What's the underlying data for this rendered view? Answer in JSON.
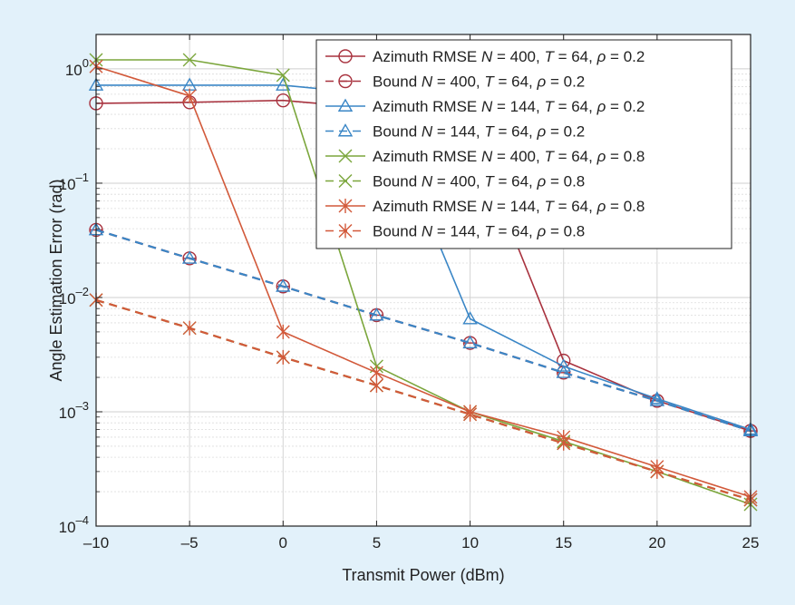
{
  "chart_data": {
    "type": "line",
    "title": "",
    "xlabel": "Transmit Power (dBm)",
    "ylabel": "Angle Estimation Error (rad)",
    "x": [
      -10,
      -5,
      0,
      5,
      10,
      15,
      20,
      25
    ],
    "xlim": [
      -10,
      25
    ],
    "ylim": [
      0.0001,
      2
    ],
    "yscale": "log",
    "grid": true,
    "legend_position": "top-right",
    "x_ticks": [
      {
        "value": -10,
        "label": "–10"
      },
      {
        "value": -5,
        "label": "–5"
      },
      {
        "value": 0,
        "label": "0"
      },
      {
        "value": 5,
        "label": "5"
      },
      {
        "value": 10,
        "label": "10"
      },
      {
        "value": 15,
        "label": "15"
      },
      {
        "value": 20,
        "label": "20"
      },
      {
        "value": 25,
        "label": "25"
      }
    ],
    "y_ticks": [
      {
        "value": 1,
        "base": "10",
        "exp": "0"
      },
      {
        "value": 0.1,
        "base": "10",
        "exp": "–1"
      },
      {
        "value": 0.01,
        "base": "10",
        "exp": "–2"
      },
      {
        "value": 0.001,
        "base": "10",
        "exp": "–3"
      },
      {
        "value": 0.0001,
        "base": "10",
        "exp": "–4"
      }
    ],
    "series": [
      {
        "name": "Azimuth RMSE N = 400, T = 64, ρ = 0.2",
        "label_prefix": "Azimuth RMSE",
        "N": "400",
        "rho": "0.2",
        "color": "#a8323e",
        "marker": "circle",
        "dashed": false,
        "values": [
          0.5,
          0.51,
          0.53,
          0.45,
          0.3,
          0.0028,
          0.00125,
          0.00068
        ]
      },
      {
        "name": "Bound N = 400, T = 64, ρ = 0.2",
        "label_prefix": "Bound",
        "N": "400",
        "rho": "0.2",
        "color": "#a8323e",
        "marker": "circle-bar",
        "dashed": true,
        "values": [
          0.039,
          0.022,
          0.0125,
          0.007,
          0.004,
          0.0022,
          0.00125,
          0.00068
        ]
      },
      {
        "name": "Azimuth RMSE N = 144, T = 64, ρ = 0.2",
        "label_prefix": "Azimuth RMSE",
        "N": "144",
        "rho": "0.2",
        "color": "#3a86c6",
        "marker": "triangle",
        "dashed": false,
        "values": [
          0.72,
          0.72,
          0.72,
          0.6,
          0.0065,
          0.0025,
          0.0013,
          0.0007
        ]
      },
      {
        "name": "Bound N = 144, T = 64, ρ = 0.2",
        "label_prefix": "Bound",
        "N": "144",
        "rho": "0.2",
        "color": "#3a86c6",
        "marker": "triangle",
        "dashed": true,
        "values": [
          0.039,
          0.022,
          0.0125,
          0.007,
          0.004,
          0.0022,
          0.00125,
          0.00068
        ]
      },
      {
        "name": "Azimuth RMSE N = 400, T = 64, ρ = 0.8",
        "label_prefix": "Azimuth RMSE",
        "N": "400",
        "rho": "0.8",
        "color": "#7ba63c",
        "marker": "x",
        "dashed": false,
        "values": [
          1.2,
          1.2,
          0.88,
          0.0025,
          0.001,
          0.00055,
          0.0003,
          0.000155
        ]
      },
      {
        "name": "Bound N = 400, T = 64, ρ = 0.8",
        "label_prefix": "Bound",
        "N": "400",
        "rho": "0.8",
        "color": "#7ba63c",
        "marker": "x",
        "dashed": true,
        "values": [
          0.0095,
          0.0054,
          0.003,
          0.0017,
          0.00095,
          0.00053,
          0.0003,
          0.00017
        ]
      },
      {
        "name": "Azimuth RMSE N = 144, T = 64, ρ = 0.8",
        "label_prefix": "Azimuth RMSE",
        "N": "144",
        "rho": "0.8",
        "color": "#d2593a",
        "marker": "star",
        "dashed": false,
        "values": [
          1.05,
          0.58,
          0.005,
          0.0022,
          0.001,
          0.0006,
          0.00033,
          0.00018
        ]
      },
      {
        "name": "Bound N = 144, T = 64, ρ = 0.8",
        "label_prefix": "Bound",
        "N": "144",
        "rho": "0.8",
        "color": "#d2593a",
        "marker": "star",
        "dashed": true,
        "values": [
          0.0095,
          0.0054,
          0.003,
          0.0017,
          0.00095,
          0.00053,
          0.0003,
          0.00017
        ]
      }
    ],
    "legend_common": {
      "n_sym": "N",
      "t_sym": "T",
      "t_val": "64",
      "rho_sym": "ρ",
      "eq": "=",
      "sep": ","
    }
  }
}
